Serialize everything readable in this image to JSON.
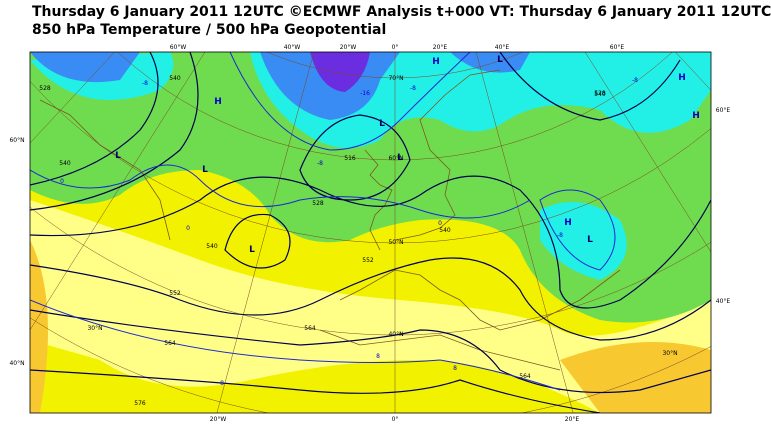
{
  "header": {
    "title": "Thursday 6 January 2011 12UTC ©ECMWF Analysis t+000 VT: Thursday 6 January 2011 12UTC",
    "subtitle": "850 hPa Temperature / 500 hPa Geopotential"
  },
  "map": {
    "longitude_labels_top": [
      "60°W",
      "40°W",
      "20°W",
      "0°",
      "20°E",
      "40°E",
      "60°E"
    ],
    "longitude_labels_bottom": [
      "20°W",
      "0°",
      "20°E"
    ],
    "latitude_labels_left": [
      "60°N",
      "40°N"
    ],
    "latitude_labels_right": [
      "60°E",
      "40°E"
    ],
    "parallel_labels": [
      "70°N",
      "60°N",
      "50°N",
      "40°N",
      "30°N",
      "30°N"
    ],
    "geopotential_labels": [
      "528",
      "540",
      "540",
      "516",
      "528",
      "540",
      "552",
      "564",
      "576",
      "540",
      "552",
      "564",
      "528",
      "540",
      "564"
    ],
    "temperature_labels": [
      "-16",
      "-8",
      "-8",
      "0",
      "0",
      "-8",
      "-8",
      "8",
      "8",
      "-8",
      "0",
      "8"
    ],
    "pressure_centers": [
      "H",
      "L",
      "L",
      "L",
      "H",
      "L",
      "L",
      "H",
      "H",
      "L",
      "H",
      "L"
    ]
  }
}
